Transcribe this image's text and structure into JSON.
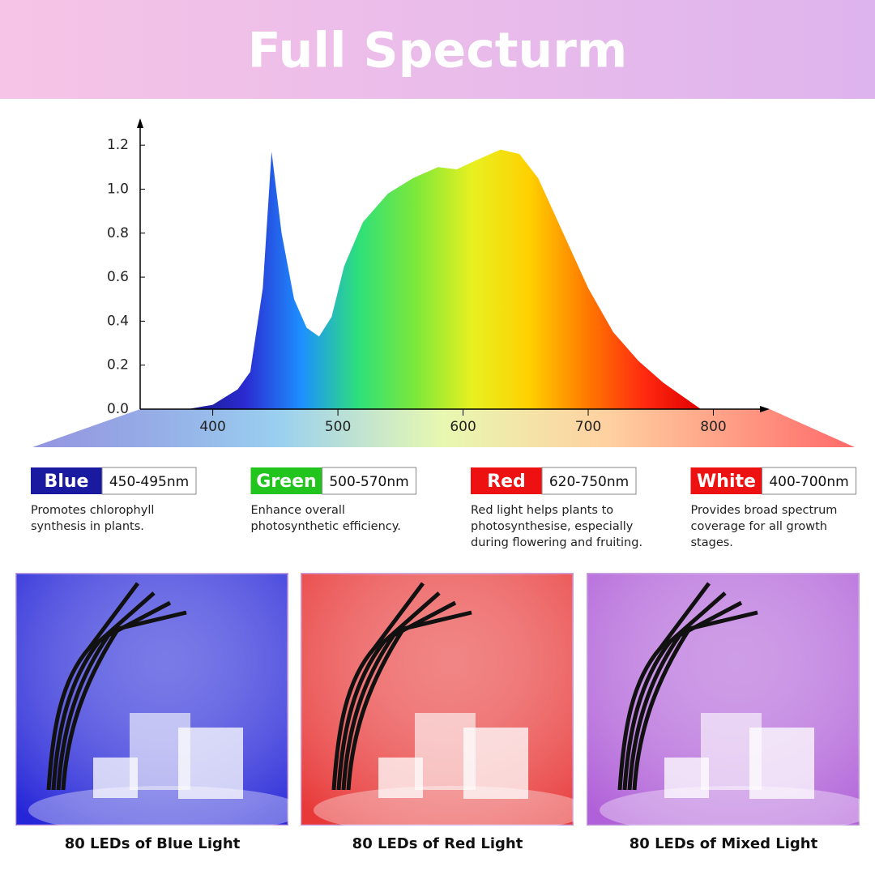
{
  "chart_data": {
    "type": "area",
    "title": "Full Specturm",
    "x": [
      380,
      400,
      420,
      430,
      440,
      447,
      455,
      465,
      475,
      485,
      495,
      505,
      520,
      540,
      560,
      580,
      595,
      610,
      630,
      645,
      660,
      680,
      700,
      720,
      740,
      760,
      780,
      790
    ],
    "values": [
      0,
      0.02,
      0.09,
      0.17,
      0.55,
      1.17,
      0.8,
      0.5,
      0.37,
      0.33,
      0.42,
      0.65,
      0.85,
      0.98,
      1.05,
      1.1,
      1.09,
      1.13,
      1.18,
      1.16,
      1.05,
      0.8,
      0.55,
      0.35,
      0.22,
      0.12,
      0.04,
      0
    ],
    "xlim": [
      342,
      845
    ],
    "ylim": [
      0,
      1.3
    ],
    "xticks": [
      400,
      500,
      600,
      700,
      800
    ],
    "yticks": [
      {
        "value": 0,
        "label": "0.0"
      },
      0.2,
      0.4,
      0.6,
      0.8,
      {
        "value": 1,
        "label": "1.0"
      },
      1.2
    ],
    "gradient": [
      "#1a1a8c",
      "#2a2ad0",
      "#1e90ff",
      "#2ee07a",
      "#7de83a",
      "#e8f020",
      "#ffd000",
      "#ff7a00",
      "#ff2a10",
      "#e00000"
    ]
  },
  "cards": [
    {
      "name": "Blue",
      "range": "450-495nm",
      "color": "#1a1aa0",
      "lines": [
        "Promotes chlorophyll",
        "synthesis in plants."
      ]
    },
    {
      "name": "Green",
      "range": "500-570nm",
      "color": "#22c41e",
      "lines": [
        "Enhance overall",
        "photosynthetic efficiency."
      ]
    },
    {
      "name": "Red",
      "range": "620-750nm",
      "color": "#ee1111",
      "lines": [
        "Red light helps plants to",
        "photosynthesise, especially",
        "during flowering and fruiting."
      ]
    },
    {
      "name": "White",
      "range": "400-700nm",
      "color": "#ee1111",
      "lines": [
        "Provides broad spectrum",
        "coverage for all growth",
        "stages."
      ]
    }
  ],
  "photos": [
    {
      "caption": "80 LEDs of Blue Light",
      "color": "#2626d8"
    },
    {
      "caption": "80 LEDs of Red Light",
      "color": "#e83838"
    },
    {
      "caption": "80 LEDs of Mixed Light",
      "color": "#b060d8"
    }
  ]
}
